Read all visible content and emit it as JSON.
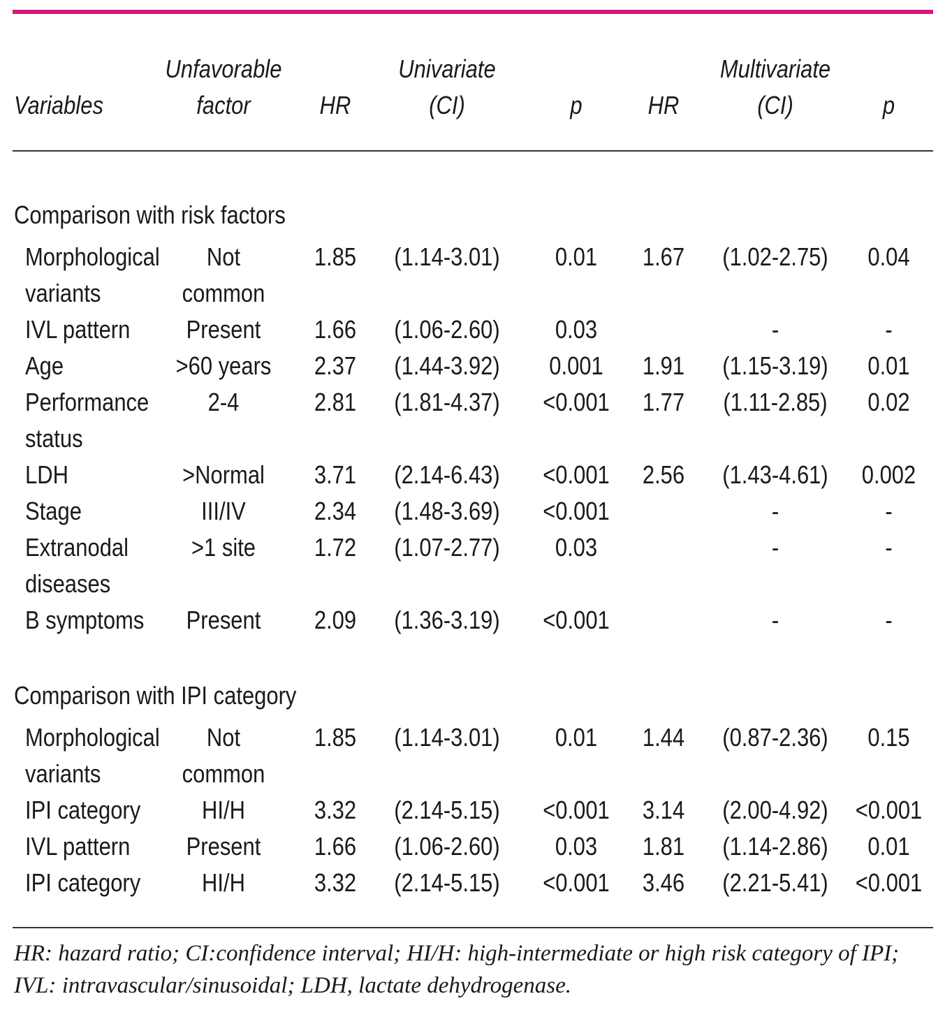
{
  "colors": {
    "top_rule": "#d6177a",
    "rules": "#333333"
  },
  "header": {
    "variables": "Variables",
    "unfavorable_line1": "Unfavorable",
    "unfavorable_line2": "factor",
    "uni_hr": "HR",
    "univariate": "Univariate",
    "uni_ci": "(CI)",
    "uni_p": "p",
    "multi_hr": "HR",
    "multivariate": "Multivariate",
    "multi_ci": "(CI)",
    "multi_p": "p"
  },
  "sections": [
    {
      "title": "Comparison with risk factors",
      "rows": [
        {
          "variable": [
            "Morphological",
            "variants"
          ],
          "factor": [
            "Not",
            "common"
          ],
          "uni_hr": "1.85",
          "uni_ci": "(1.14-3.01)",
          "uni_p": "0.01",
          "multi_hr": "1.67",
          "multi_ci": "(1.02-2.75)",
          "multi_p": "0.04"
        },
        {
          "variable": [
            "IVL pattern"
          ],
          "factor": [
            "Present"
          ],
          "uni_hr": "1.66",
          "uni_ci": "(1.06-2.60)",
          "uni_p": "0.03",
          "multi_hr": "",
          "multi_ci": "-",
          "multi_p": "-"
        },
        {
          "variable": [
            "Age"
          ],
          "factor": [
            ">60 years"
          ],
          "uni_hr": "2.37",
          "uni_ci": "(1.44-3.92)",
          "uni_p": "0.001",
          "multi_hr": "1.91",
          "multi_ci": "(1.15-3.19)",
          "multi_p": "0.01"
        },
        {
          "variable": [
            "Performance",
            "status"
          ],
          "factor": [
            "2-4"
          ],
          "uni_hr": "2.81",
          "uni_ci": "(1.81-4.37)",
          "uni_p": "<0.001",
          "multi_hr": "1.77",
          "multi_ci": "(1.11-2.85)",
          "multi_p": "0.02"
        },
        {
          "variable": [
            "LDH"
          ],
          "factor": [
            ">Normal"
          ],
          "uni_hr": "3.71",
          "uni_ci": "(2.14-6.43)",
          "uni_p": "<0.001",
          "multi_hr": "2.56",
          "multi_ci": "(1.43-4.61)",
          "multi_p": "0.002"
        },
        {
          "variable": [
            "Stage"
          ],
          "factor": [
            "III/IV"
          ],
          "uni_hr": "2.34",
          "uni_ci": "(1.48-3.69)",
          "uni_p": "<0.001",
          "multi_hr": "",
          "multi_ci": "-",
          "multi_p": "-"
        },
        {
          "variable": [
            "Extranodal",
            "diseases"
          ],
          "factor": [
            ">1 site"
          ],
          "uni_hr": "1.72",
          "uni_ci": "(1.07-2.77)",
          "uni_p": "0.03",
          "multi_hr": "",
          "multi_ci": "-",
          "multi_p": "-"
        },
        {
          "variable": [
            "B symptoms"
          ],
          "factor": [
            "Present"
          ],
          "uni_hr": "2.09",
          "uni_ci": "(1.36-3.19)",
          "uni_p": "<0.001",
          "multi_hr": "",
          "multi_ci": "-",
          "multi_p": "-"
        }
      ]
    },
    {
      "title": "Comparison with IPI category",
      "rows": [
        {
          "variable": [
            "Morphological",
            "variants"
          ],
          "factor": [
            "Not",
            "common"
          ],
          "uni_hr": "1.85",
          "uni_ci": "(1.14-3.01)",
          "uni_p": "0.01",
          "multi_hr": "1.44",
          "multi_ci": "(0.87-2.36)",
          "multi_p": "0.15"
        },
        {
          "variable": [
            "IPI category"
          ],
          "factor": [
            "HI/H"
          ],
          "uni_hr": "3.32",
          "uni_ci": "(2.14-5.15)",
          "uni_p": "<0.001",
          "multi_hr": "3.14",
          "multi_ci": "(2.00-4.92)",
          "multi_p": "<0.001"
        },
        {
          "variable": [
            "IVL pattern"
          ],
          "factor": [
            "Present"
          ],
          "uni_hr": "1.66",
          "uni_ci": "(1.06-2.60)",
          "uni_p": "0.03",
          "multi_hr": "1.81",
          "multi_ci": "(1.14-2.86)",
          "multi_p": "0.01"
        },
        {
          "variable": [
            "IPI category"
          ],
          "factor": [
            "HI/H"
          ],
          "uni_hr": "3.32",
          "uni_ci": "(2.14-5.15)",
          "uni_p": "<0.001",
          "multi_hr": "3.46",
          "multi_ci": "(2.21-5.41)",
          "multi_p": "<0.001"
        }
      ]
    }
  ],
  "footnote": "HR: hazard ratio; CI:confidence interval; HI/H: high-intermediate or high risk category of IPI; IVL: intravascular/sinusoidal; LDH, lactate dehydrogenase."
}
